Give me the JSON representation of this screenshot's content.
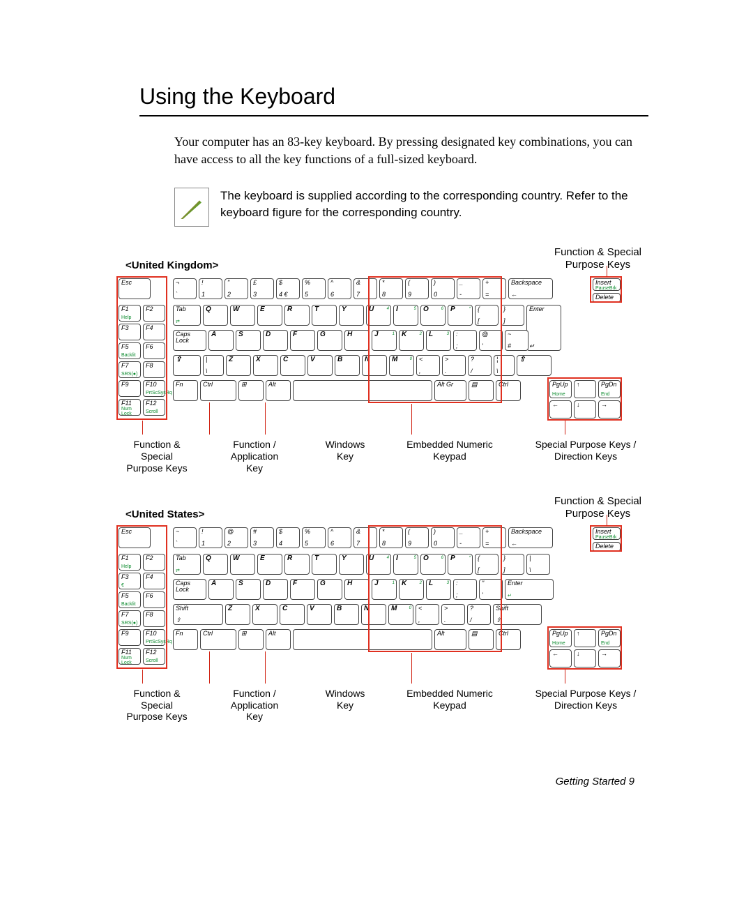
{
  "title": "Using the Keyboard",
  "intro": "Your computer has an 83-key keyboard. By pressing designated key combinations, you can have access to all the key functions of a full-sized keyboard.",
  "note": "The keyboard is supplied according to the corresponding country. Refer to the keyboard figure for the corresponding country.",
  "footer": "Getting Started   9",
  "headers": {
    "fsp": "Function & Special\nPurpose Keys"
  },
  "sections": [
    {
      "label": "<United Kingdom>"
    },
    {
      "label": "<United States>"
    }
  ],
  "callouts": {
    "c1": "Function &\nSpecial\nPurpose Keys",
    "c2": "Function /\nApplication\nKey",
    "c3": "Windows\nKey",
    "c4": "Embedded Numeric\nKeypad",
    "c5": "Special Purpose Keys /\nDirection Keys"
  },
  "uk": {
    "fncol": [
      [
        "F1",
        "Help",
        "F2",
        ""
      ],
      [
        "F3",
        "",
        "F4",
        ""
      ],
      [
        "F5",
        "Backlit",
        "F6",
        ""
      ],
      [
        "F7",
        "SRS(●)",
        "F8",
        ""
      ],
      [
        "F9",
        "",
        "F10",
        "PrtScSysRq"
      ],
      [
        "F11",
        "Num Lock",
        "F12",
        "Scroll"
      ]
    ],
    "row1_esc": "Esc",
    "row1": [
      [
        "¬",
        "`"
      ],
      [
        "!",
        "1"
      ],
      [
        "\"",
        "2"
      ],
      [
        "£",
        "3"
      ],
      [
        "$",
        "4  €"
      ],
      [
        "%",
        "5"
      ],
      [
        "^",
        "6"
      ],
      [
        "&",
        "7"
      ],
      [
        "*",
        "8"
      ],
      [
        "(",
        "9"
      ],
      [
        ")",
        "0"
      ],
      [
        "_",
        "-"
      ],
      [
        "+",
        "="
      ]
    ],
    "row1_bs": "Backspace",
    "row1_side": [
      "Insert",
      "PauseBrk",
      "Delete"
    ],
    "row2_tab": "Tab",
    "row2": [
      "Q",
      "W",
      "E",
      "R",
      "T",
      "Y",
      "U",
      "I",
      "O",
      "P"
    ],
    "row2_br": [
      [
        "{",
        "["
      ],
      [
        "}",
        "]"
      ]
    ],
    "row2_enter": "Enter",
    "row3_caps": "Caps\nLock",
    "row3": [
      "A",
      "S",
      "D",
      "F",
      "G",
      "H",
      "J",
      "K",
      "L"
    ],
    "row3_br": [
      [
        ":",
        ";"
      ],
      [
        "@",
        "'"
      ],
      [
        "~",
        "#"
      ]
    ],
    "row4_shift": "⇧",
    "row4_extra": [
      "|",
      "\\"
    ],
    "row4": [
      "Z",
      "X",
      "C",
      "V",
      "B",
      "N",
      "M"
    ],
    "row4_br": [
      [
        "<",
        ","
      ],
      [
        ">",
        "."
      ],
      [
        "?",
        "/"
      ]
    ],
    "row5": [
      "Fn",
      "Ctrl",
      "⊞",
      "Alt",
      "",
      "Alt Gr",
      "▤",
      "Ctrl"
    ],
    "row5_nav": [
      [
        "PgUp",
        "Home"
      ],
      [
        "↑",
        ""
      ],
      [
        "PgDn",
        "End"
      ],
      [
        "←",
        ""
      ],
      [
        "↓",
        ""
      ],
      [
        "→",
        ""
      ]
    ],
    "num_overlay": {
      "7": "7",
      "8": "8",
      "9": "9",
      "0": "/",
      "U": "4",
      "I": "5",
      "O": "6",
      "P": "*",
      "J": "1",
      "K": "2",
      "L": "3",
      "M": "0"
    }
  },
  "us": {
    "fncol": [
      [
        "F1",
        "Help",
        "F2",
        ""
      ],
      [
        "F3",
        "€",
        "F4",
        ""
      ],
      [
        "F5",
        "Backlit",
        "F6",
        ""
      ],
      [
        "F7",
        "SRS(●)",
        "F8",
        ""
      ],
      [
        "F9",
        "",
        "F10",
        "PrtScSysRq"
      ],
      [
        "F11",
        "Num Lock",
        "F12",
        "Scroll"
      ]
    ],
    "row1_esc": "Esc",
    "row1": [
      [
        "~",
        "`"
      ],
      [
        "!",
        "1"
      ],
      [
        "@",
        "2"
      ],
      [
        "#",
        "3"
      ],
      [
        "$",
        "4"
      ],
      [
        "%",
        "5"
      ],
      [
        "^",
        "6"
      ],
      [
        "&",
        "7"
      ],
      [
        "*",
        "8"
      ],
      [
        "(",
        "9"
      ],
      [
        ")",
        "0"
      ],
      [
        "_",
        "-"
      ],
      [
        "+",
        "="
      ]
    ],
    "row1_bs": "Backspace",
    "row1_side": [
      "Insert",
      "PauseBrk",
      "Delete"
    ],
    "row2_tab": "Tab",
    "row2": [
      "Q",
      "W",
      "E",
      "R",
      "T",
      "Y",
      "U",
      "I",
      "O",
      "P"
    ],
    "row2_br": [
      [
        "{",
        "["
      ],
      [
        "}",
        "]"
      ],
      [
        "|",
        "\\"
      ]
    ],
    "row3_caps": "Caps\nLock",
    "row3": [
      "A",
      "S",
      "D",
      "F",
      "G",
      "H",
      "J",
      "K",
      "L"
    ],
    "row3_br": [
      [
        ":",
        ";"
      ],
      [
        "\"",
        "'"
      ]
    ],
    "row3_enter": "Enter",
    "row4_shift": "Shift",
    "row4": [
      "Z",
      "X",
      "C",
      "V",
      "B",
      "N",
      "M"
    ],
    "row4_br": [
      [
        "<",
        ","
      ],
      [
        ">",
        "."
      ],
      [
        "?",
        "/"
      ]
    ],
    "row4_rshift": "Shift",
    "row5": [
      "Fn",
      "Ctrl",
      "⊞",
      "Alt",
      "",
      "Alt",
      "▤",
      "Ctrl"
    ],
    "row5_nav": [
      [
        "PgUp",
        "Home"
      ],
      [
        "↑",
        ""
      ],
      [
        "PgDn",
        "End"
      ],
      [
        "←",
        ""
      ],
      [
        "↓",
        ""
      ],
      [
        "→",
        ""
      ]
    ],
    "num_overlay": {
      "7": "7",
      "8": "8",
      "9": "9",
      "0": "/",
      "U": "4",
      "I": "5",
      "O": "6",
      "P": "*",
      "J": "1",
      "K": "2",
      "L": "3",
      "M": "0"
    }
  },
  "colors": {
    "red": "#e03020",
    "green": "#0a8a2c"
  }
}
